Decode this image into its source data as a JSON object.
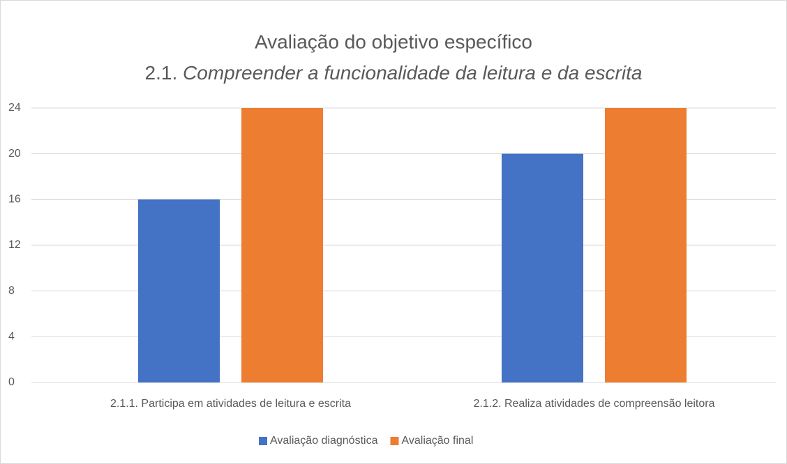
{
  "chart_data": {
    "type": "bar",
    "title": "Avaliação do objetivo específico",
    "subtitle": [
      "2.1.",
      "Compreender a funcionalidade da leitura e da escrita"
    ],
    "categories": [
      "2.1.1. Participa em atividades de leitura e escrita",
      "2.1.2. Realiza atividades de compreensão leitora"
    ],
    "series": [
      {
        "name": "Avaliação diagnóstica",
        "color": "#4472c4",
        "values": [
          16,
          20
        ]
      },
      {
        "name": "Avaliação final",
        "color": "#ed7d31",
        "values": [
          24,
          24
        ]
      }
    ],
    "ylim": [
      0,
      24
    ],
    "yticks": [
      0,
      4,
      8,
      12,
      16,
      20,
      24
    ],
    "grid": true,
    "legend": "bottom"
  }
}
